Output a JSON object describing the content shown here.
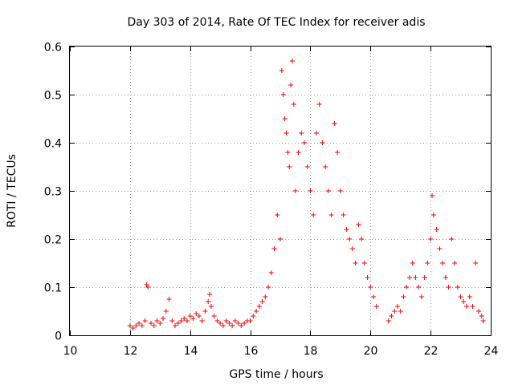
{
  "chart_data": {
    "type": "scatter",
    "title": "Day 303 of 2014, Rate Of TEC Index for receiver adis",
    "xlabel": "GPS time / hours",
    "ylabel": "ROTI / TECUs",
    "xlim": [
      10,
      24
    ],
    "ylim": [
      0,
      0.6
    ],
    "xticks": [
      "10",
      "12",
      "14",
      "16",
      "18",
      "20",
      "22",
      "24"
    ],
    "yticks": [
      "0",
      "0.1",
      "0.2",
      "0.3",
      "0.4",
      "0.5",
      "0.6"
    ],
    "grid": true,
    "marker": "+",
    "series": [
      {
        "name": "adis",
        "color": "#ff0000",
        "points": [
          [
            12.0,
            0.02
          ],
          [
            12.1,
            0.015
          ],
          [
            12.2,
            0.02
          ],
          [
            12.3,
            0.025
          ],
          [
            12.4,
            0.02
          ],
          [
            12.5,
            0.03
          ],
          [
            12.55,
            0.105
          ],
          [
            12.6,
            0.1
          ],
          [
            12.7,
            0.025
          ],
          [
            12.8,
            0.02
          ],
          [
            12.9,
            0.03
          ],
          [
            13.0,
            0.025
          ],
          [
            13.1,
            0.035
          ],
          [
            13.2,
            0.05
          ],
          [
            13.3,
            0.075
          ],
          [
            13.4,
            0.03
          ],
          [
            13.5,
            0.02
          ],
          [
            13.6,
            0.025
          ],
          [
            13.7,
            0.03
          ],
          [
            13.8,
            0.035
          ],
          [
            13.9,
            0.03
          ],
          [
            14.0,
            0.04
          ],
          [
            14.1,
            0.035
          ],
          [
            14.2,
            0.045
          ],
          [
            14.3,
            0.04
          ],
          [
            14.4,
            0.03
          ],
          [
            14.5,
            0.05
          ],
          [
            14.6,
            0.07
          ],
          [
            14.65,
            0.085
          ],
          [
            14.7,
            0.06
          ],
          [
            14.8,
            0.04
          ],
          [
            14.9,
            0.03
          ],
          [
            15.0,
            0.025
          ],
          [
            15.1,
            0.02
          ],
          [
            15.2,
            0.03
          ],
          [
            15.3,
            0.025
          ],
          [
            15.4,
            0.02
          ],
          [
            15.5,
            0.03
          ],
          [
            15.6,
            0.025
          ],
          [
            15.7,
            0.02
          ],
          [
            15.8,
            0.025
          ],
          [
            15.9,
            0.03
          ],
          [
            16.0,
            0.03
          ],
          [
            16.1,
            0.04
          ],
          [
            16.2,
            0.05
          ],
          [
            16.3,
            0.06
          ],
          [
            16.4,
            0.07
          ],
          [
            16.5,
            0.08
          ],
          [
            16.6,
            0.1
          ],
          [
            16.7,
            0.13
          ],
          [
            16.8,
            0.18
          ],
          [
            16.9,
            0.25
          ],
          [
            17.0,
            0.2
          ],
          [
            17.05,
            0.55
          ],
          [
            17.1,
            0.5
          ],
          [
            17.15,
            0.45
          ],
          [
            17.2,
            0.42
          ],
          [
            17.25,
            0.38
          ],
          [
            17.3,
            0.35
          ],
          [
            17.35,
            0.52
          ],
          [
            17.4,
            0.57
          ],
          [
            17.45,
            0.48
          ],
          [
            17.5,
            0.3
          ],
          [
            17.6,
            0.38
          ],
          [
            17.7,
            0.42
          ],
          [
            17.8,
            0.4
          ],
          [
            17.9,
            0.35
          ],
          [
            18.0,
            0.3
          ],
          [
            18.1,
            0.25
          ],
          [
            18.2,
            0.42
          ],
          [
            18.3,
            0.48
          ],
          [
            18.4,
            0.4
          ],
          [
            18.5,
            0.35
          ],
          [
            18.6,
            0.3
          ],
          [
            18.7,
            0.25
          ],
          [
            18.8,
            0.44
          ],
          [
            18.9,
            0.38
          ],
          [
            19.0,
            0.3
          ],
          [
            19.1,
            0.25
          ],
          [
            19.2,
            0.22
          ],
          [
            19.3,
            0.2
          ],
          [
            19.4,
            0.18
          ],
          [
            19.5,
            0.15
          ],
          [
            19.6,
            0.23
          ],
          [
            19.7,
            0.2
          ],
          [
            19.8,
            0.15
          ],
          [
            19.9,
            0.12
          ],
          [
            20.0,
            0.1
          ],
          [
            20.1,
            0.08
          ],
          [
            20.2,
            0.06
          ],
          [
            20.6,
            0.03
          ],
          [
            20.7,
            0.04
          ],
          [
            20.8,
            0.05
          ],
          [
            20.9,
            0.06
          ],
          [
            21.0,
            0.05
          ],
          [
            21.1,
            0.08
          ],
          [
            21.2,
            0.1
          ],
          [
            21.3,
            0.12
          ],
          [
            21.4,
            0.15
          ],
          [
            21.5,
            0.12
          ],
          [
            21.6,
            0.1
          ],
          [
            21.7,
            0.08
          ],
          [
            21.8,
            0.12
          ],
          [
            21.9,
            0.15
          ],
          [
            22.0,
            0.2
          ],
          [
            22.05,
            0.29
          ],
          [
            22.1,
            0.25
          ],
          [
            22.2,
            0.22
          ],
          [
            22.3,
            0.18
          ],
          [
            22.4,
            0.15
          ],
          [
            22.5,
            0.12
          ],
          [
            22.6,
            0.1
          ],
          [
            22.7,
            0.2
          ],
          [
            22.8,
            0.15
          ],
          [
            22.9,
            0.1
          ],
          [
            23.0,
            0.08
          ],
          [
            23.1,
            0.07
          ],
          [
            23.2,
            0.06
          ],
          [
            23.3,
            0.08
          ],
          [
            23.4,
            0.06
          ],
          [
            23.5,
            0.15
          ],
          [
            23.6,
            0.05
          ],
          [
            23.7,
            0.04
          ],
          [
            23.75,
            0.03
          ]
        ]
      }
    ]
  }
}
